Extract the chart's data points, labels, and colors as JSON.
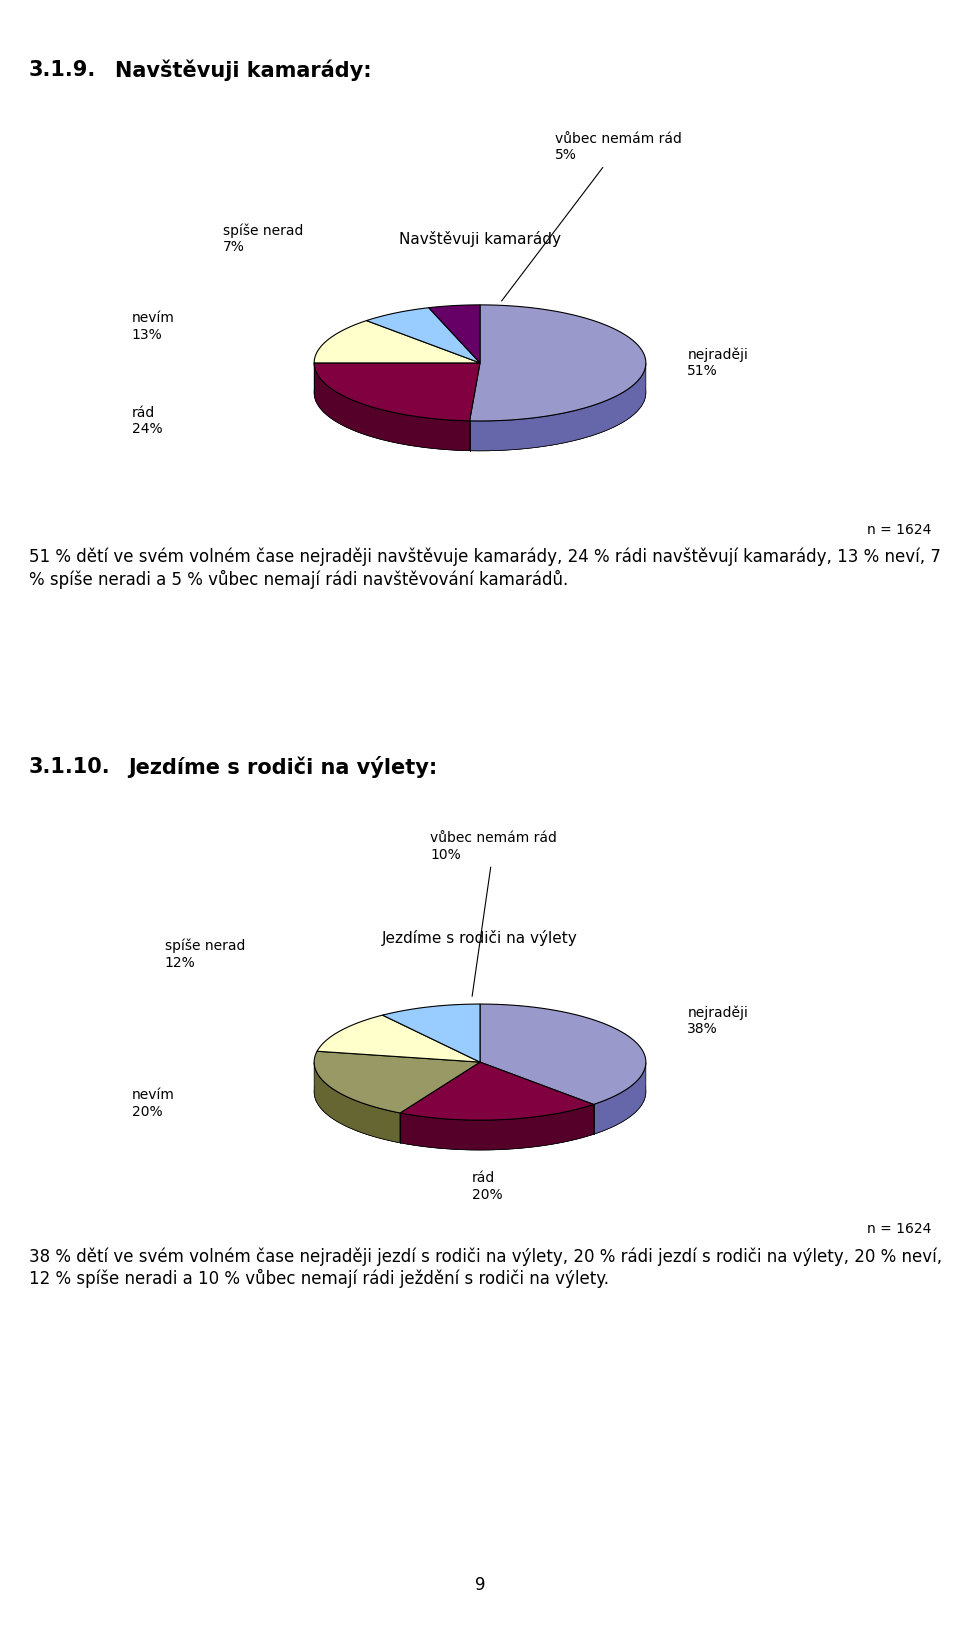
{
  "chart1": {
    "title": "Navštěvuji kamarády",
    "slices": [
      {
        "label": "nejraději",
        "pct": "51%",
        "value": 51,
        "color": "#9999CC",
        "dark": "#6666AA"
      },
      {
        "label": "rád",
        "pct": "24%",
        "value": 24,
        "color": "#800040",
        "dark": "#550028"
      },
      {
        "label": "nevím",
        "pct": "13%",
        "value": 13,
        "color": "#FFFFCC",
        "dark": "#CCCC99"
      },
      {
        "label": "spíše nerad",
        "pct": "7%",
        "value": 7,
        "color": "#99CCFF",
        "dark": "#6699CC"
      },
      {
        "label": "vůbec nemám rád",
        "pct": "5%",
        "value": 5,
        "color": "#660066",
        "dark": "#440044"
      }
    ],
    "startangle_deg": 90,
    "n_text": "n = 1624",
    "paragraph": "51 % dětí ve svém volném čase nejraději navštěvuje kamarády, 24 % rádi navštěvují kamarády, 13 % neví, 7 % spíše neradi a 5 % vůbec nemají rádi navštěvování kamarádů."
  },
  "chart2": {
    "title": "Jezdíme s rodiči na výlety",
    "slices": [
      {
        "label": "nejraději",
        "pct": "38%",
        "value": 38,
        "color": "#9999CC",
        "dark": "#6666AA"
      },
      {
        "label": "rád",
        "pct": "20%",
        "value": 20,
        "color": "#800040",
        "dark": "#550028"
      },
      {
        "label": "nevím",
        "pct": "20%",
        "value": 20,
        "color": "#999966",
        "dark": "#666633"
      },
      {
        "label": "spíše nerad",
        "pct": "12%",
        "value": 12,
        "color": "#FFFFCC",
        "dark": "#CCCC99"
      },
      {
        "label": "vůbec nemám rád",
        "pct": "10%",
        "value": 10,
        "color": "#99CCFF",
        "dark": "#6699CC"
      }
    ],
    "startangle_deg": 90,
    "n_text": "n = 1624",
    "paragraph": "38 % dětí ve svém volném čase nejraději jezdí s rodiči na výlety, 20 % rádi jezdí s rodiči na výlety, 20 % neví, 12 % spíše neradi a 10 % vůbec nemají rádi ježdění s rodiči na výlety."
  },
  "section1_number": "3.1.9.",
  "section1_name": "Navštěvuji kamarády:",
  "section2_number": "3.1.10.",
  "section2_name": "Jezdíme s rodiči na výlety:",
  "page_number": "9",
  "bg_color": "#FFFFFF"
}
